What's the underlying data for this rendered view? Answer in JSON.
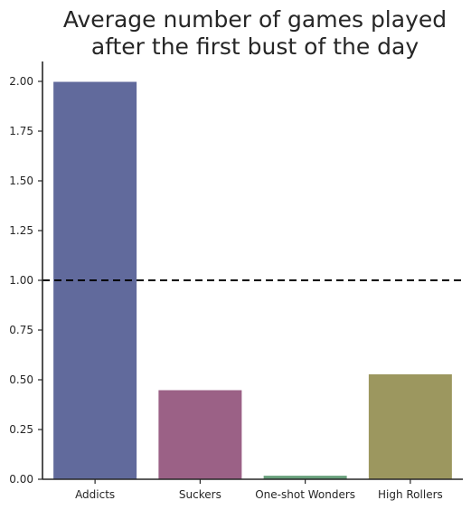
{
  "chart_data": {
    "type": "bar",
    "title_lines": [
      "Average number of games played",
      "after the first bust of the day"
    ],
    "xlabel": "",
    "ylabel": "",
    "categories": [
      "Addicts",
      "Suckers",
      "One-shot Wonders",
      "High Rollers"
    ],
    "values": [
      2.0,
      0.45,
      0.02,
      0.53
    ],
    "colors": [
      "#616a9c",
      "#9b6186",
      "#69a07c",
      "#9c975f"
    ],
    "ylim": [
      0,
      2.1
    ],
    "yticks": [
      0.0,
      0.25,
      0.5,
      0.75,
      1.0,
      1.25,
      1.5,
      1.75,
      2.0
    ],
    "ytick_labels": [
      "0.00",
      "0.25",
      "0.50",
      "0.75",
      "1.00",
      "1.25",
      "1.50",
      "1.75",
      "2.00"
    ],
    "reference_line": {
      "y": 1.0,
      "style": "dashed",
      "color": "#000000"
    },
    "grid": false,
    "legend": "none"
  }
}
